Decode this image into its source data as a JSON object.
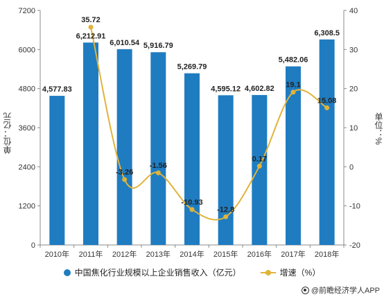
{
  "chart_data": {
    "type": "bar",
    "categories": [
      "2010年",
      "2011年",
      "2012年",
      "2013年",
      "2014年",
      "2015年",
      "2016年",
      "2017年",
      "2018年"
    ],
    "series": [
      {
        "name": "中国焦化行业规模以上企业销售收入（亿元）",
        "type": "bar",
        "axis": "left",
        "color": "#1f7cc1",
        "values": [
          4577.83,
          6212.91,
          6010.54,
          5916.79,
          5269.79,
          4595.12,
          4602.82,
          5482.06,
          6308.5
        ],
        "labels": [
          "4,577.83",
          "6,212.91",
          "6,010.54",
          "5,916.79",
          "5,269.79",
          "4,595.12",
          "4,602.82",
          "5,482.06",
          "6,308.5"
        ]
      },
      {
        "name": "增速（%）",
        "type": "line",
        "axis": "right",
        "color": "#e0b33a",
        "values": [
          null,
          35.72,
          -3.26,
          -1.56,
          -10.93,
          -12.8,
          0.17,
          19.1,
          15.08
        ],
        "labels": [
          "",
          "35.72",
          "-3.26",
          "-1.56",
          "-10.93",
          "-12.8",
          "0.17",
          "19.1",
          "15.08"
        ]
      }
    ],
    "y_left": {
      "label": "单位：亿元",
      "min": 0,
      "max": 7200,
      "ticks": [
        "0",
        "1200",
        "2400",
        "3600",
        "4800",
        "6000",
        "7200"
      ]
    },
    "y_right": {
      "label": "单位：%",
      "min": -20,
      "max": 40,
      "ticks": [
        "-20",
        "-10",
        "0",
        "10",
        "20",
        "30",
        "40"
      ]
    },
    "grid": false,
    "legend": "bottom"
  },
  "source": {
    "text": "@前瞻经济学人APP"
  }
}
